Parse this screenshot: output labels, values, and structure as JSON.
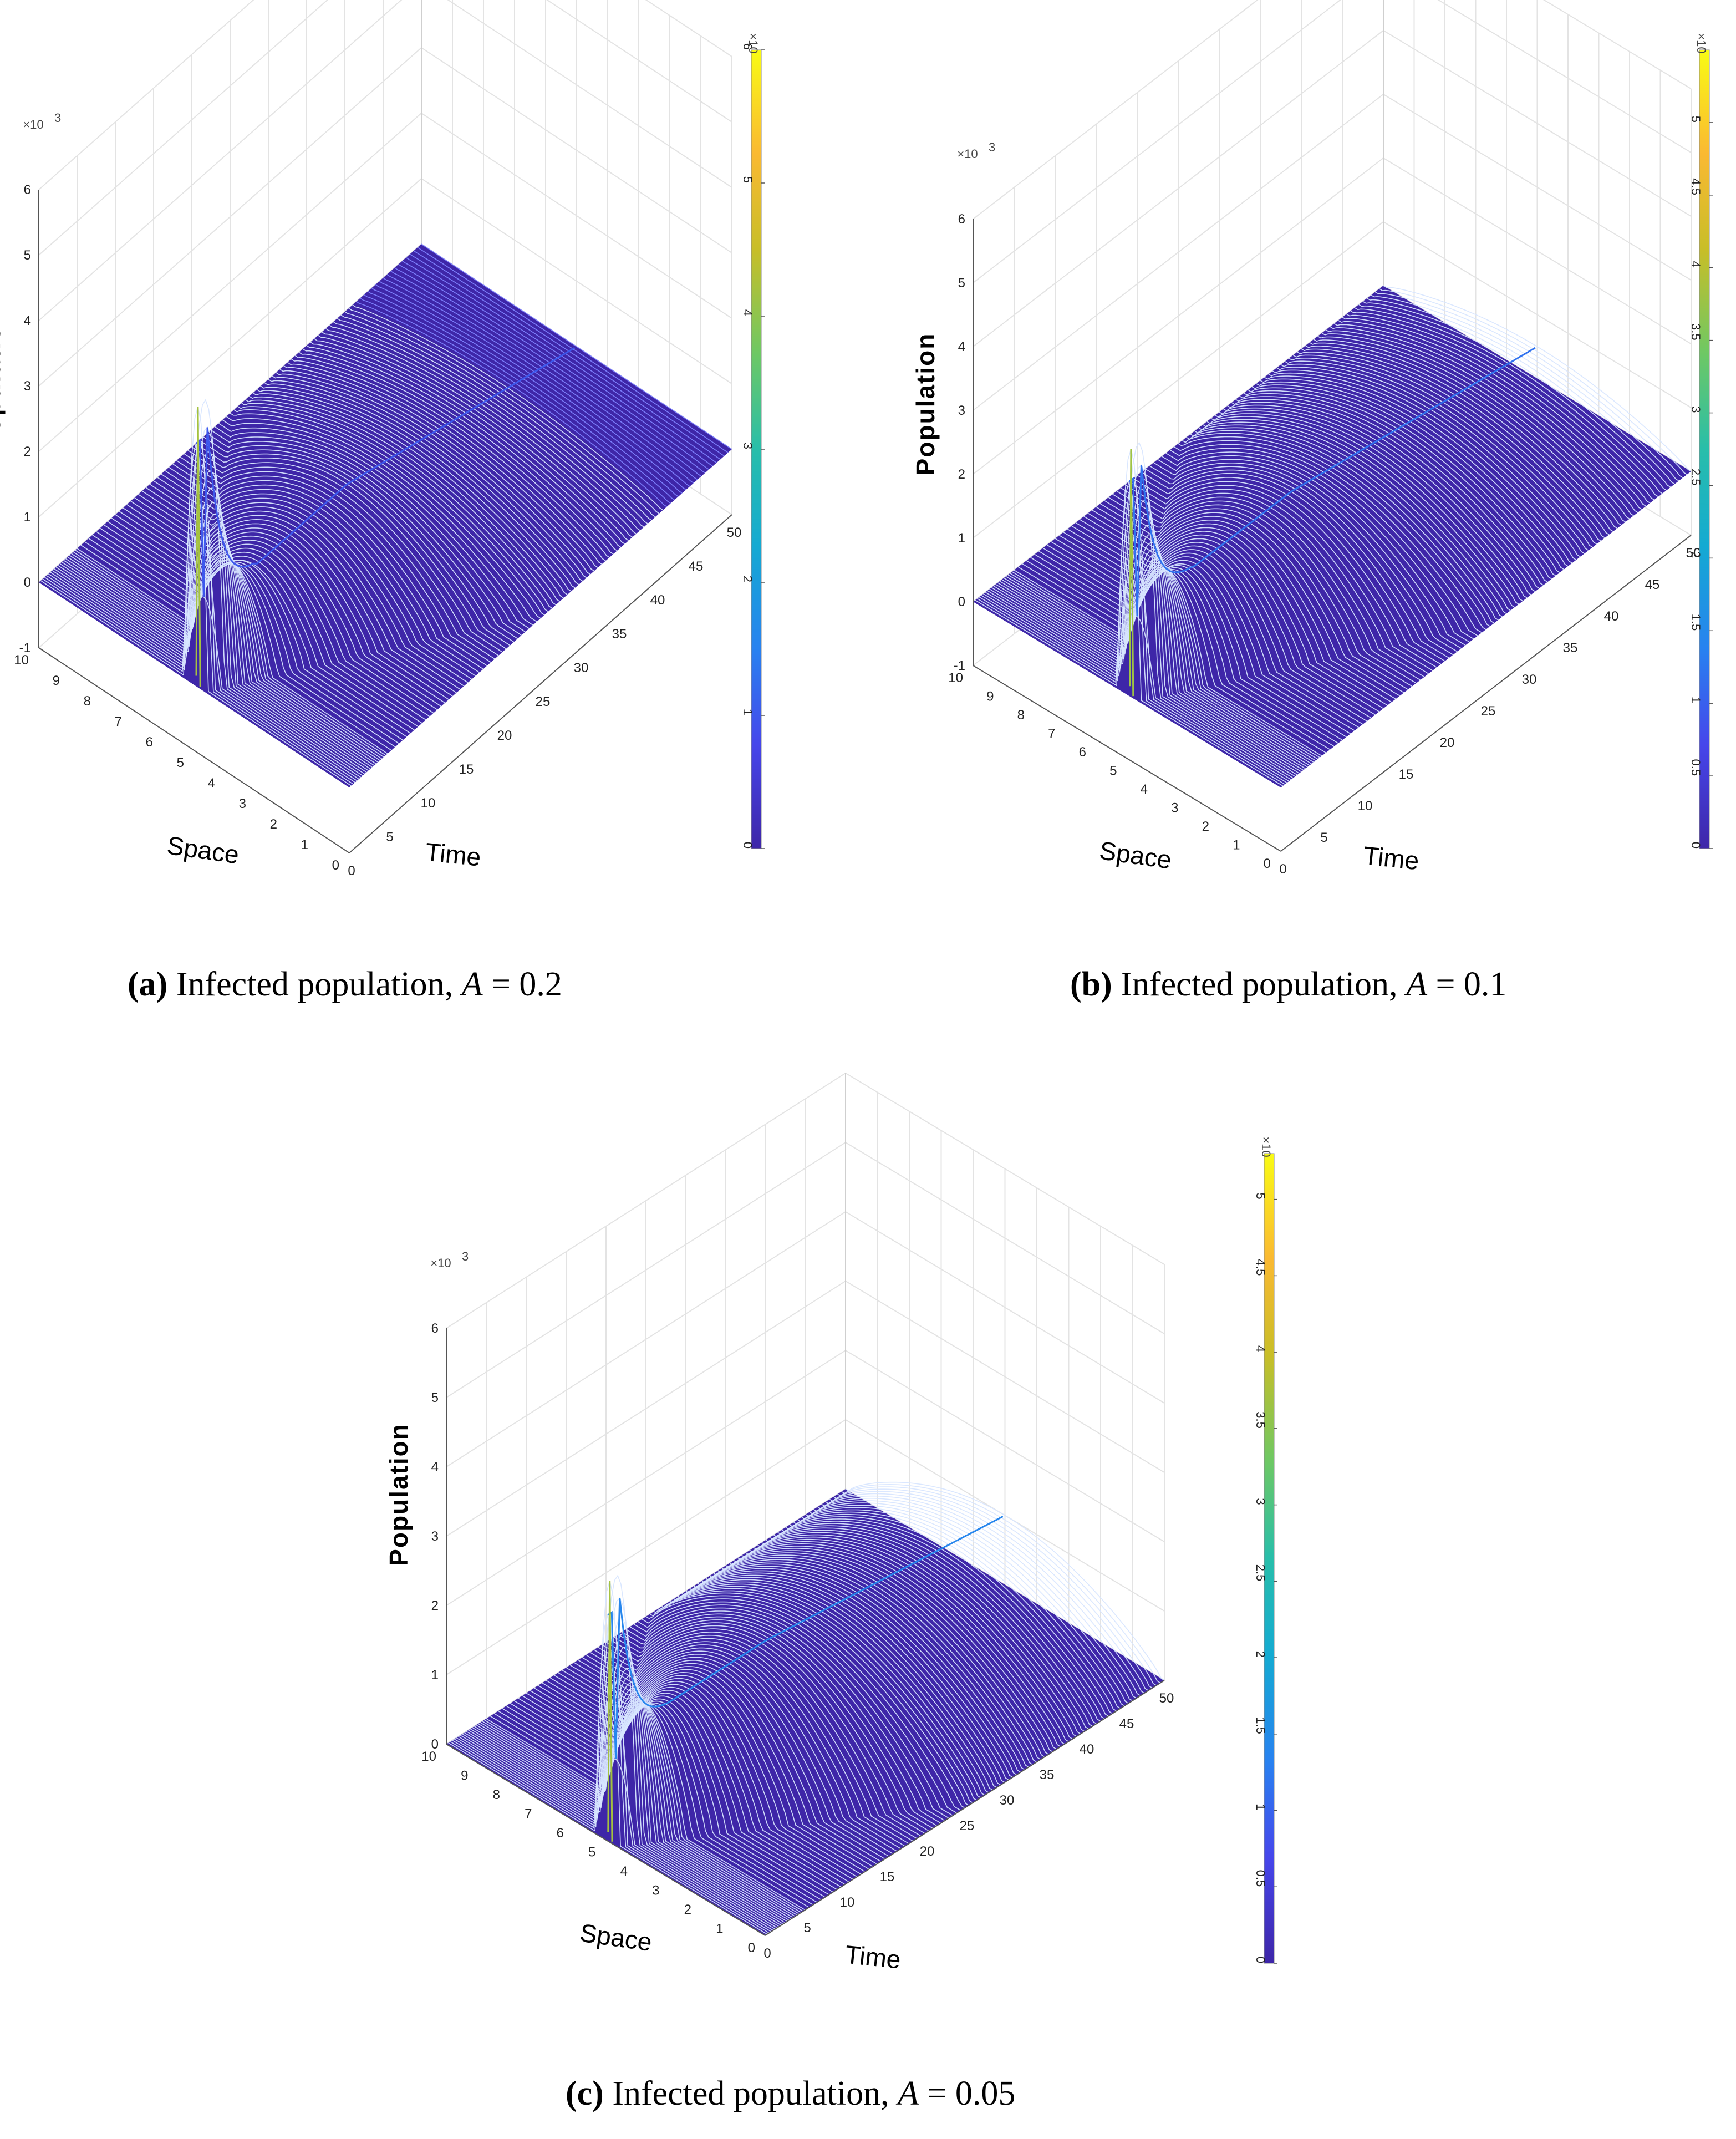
{
  "chart_data": [
    {
      "type": "surface3d",
      "panel": "a",
      "caption": {
        "letter": "(a)",
        "text": " Infected population, ",
        "param": "A",
        "value": " = 0.2"
      },
      "xlabel": "Space",
      "ylabel": "Time",
      "zlabel": "Population",
      "z_exponent": "×10",
      "exp_power": "3",
      "xlim": [
        0,
        10
      ],
      "ylim": [
        0,
        50
      ],
      "zlim": [
        -1,
        6
      ],
      "xticks": [
        "0",
        "1",
        "2",
        "3",
        "4",
        "5",
        "6",
        "7",
        "8",
        "9",
        "10"
      ],
      "yticks": [
        "0",
        "5",
        "10",
        "15",
        "20",
        "25",
        "30",
        "35",
        "40",
        "45",
        "50"
      ],
      "zticks": [
        "-1",
        "0",
        "1",
        "2",
        "3",
        "4",
        "5",
        "6"
      ],
      "colorbar": {
        "min": 0,
        "max": 6,
        "ticks": [
          "0",
          "1",
          "2",
          "3",
          "4",
          "5",
          "6"
        ],
        "exponent": "×10",
        "exp_power": "3"
      },
      "surface": {
        "peak_space": 5,
        "peak_time": 0.5,
        "peak_value": 4.2,
        "ridge_value": 1.0,
        "late_value": 0.0
      }
    },
    {
      "type": "surface3d",
      "panel": "b",
      "caption": {
        "letter": "(b)",
        "text": " Infected population, ",
        "param": "A",
        "value": " = 0.1"
      },
      "xlabel": "Space",
      "ylabel": "Time",
      "zlabel": "Population",
      "z_exponent": "×10",
      "exp_power": "3",
      "xlim": [
        0,
        10
      ],
      "ylim": [
        0,
        50
      ],
      "zlim": [
        -1,
        6
      ],
      "xticks": [
        "0",
        "1",
        "2",
        "3",
        "4",
        "5",
        "6",
        "7",
        "8",
        "9",
        "10"
      ],
      "yticks": [
        "0",
        "5",
        "10",
        "15",
        "20",
        "25",
        "30",
        "35",
        "40",
        "45",
        "50"
      ],
      "zticks": [
        "-1",
        "0",
        "1",
        "2",
        "3",
        "4",
        "5",
        "6"
      ],
      "colorbar": {
        "min": 0,
        "max": 5.5,
        "ticks": [
          "0",
          "0.5",
          "1",
          "1.5",
          "2",
          "2.5",
          "3",
          "3.5",
          "4",
          "4.5",
          "5"
        ],
        "exponent": "×10",
        "exp_power": "3"
      },
      "surface": {
        "peak_space": 5,
        "peak_time": 0.5,
        "peak_value": 3.8,
        "ridge_value": 1.2,
        "late_value": 0.5
      }
    },
    {
      "type": "surface3d",
      "panel": "c",
      "caption": {
        "letter": "(c)",
        "text": " Infected population, ",
        "param": "A",
        "value": " = 0.05"
      },
      "xlabel": "Space",
      "ylabel": "Time",
      "zlabel": "Population",
      "z_exponent": "×10",
      "exp_power": "3",
      "xlim": [
        0,
        10
      ],
      "ylim": [
        0,
        50
      ],
      "zlim": [
        0,
        6
      ],
      "xticks": [
        "0",
        "1",
        "2",
        "3",
        "4",
        "5",
        "6",
        "7",
        "8",
        "9",
        "10"
      ],
      "yticks": [
        "0",
        "5",
        "10",
        "15",
        "20",
        "25",
        "30",
        "35",
        "40",
        "45",
        "50"
      ],
      "zticks": [
        "0",
        "1",
        "2",
        "3",
        "4",
        "5",
        "6"
      ],
      "colorbar": {
        "min": 0,
        "max": 5.3,
        "ticks": [
          "0",
          "0.5",
          "1",
          "1.5",
          "2",
          "2.5",
          "3",
          "3.5",
          "4",
          "4.5",
          "5"
        ],
        "exponent": "×10",
        "exp_power": "3"
      },
      "surface": {
        "peak_space": 5,
        "peak_time": 0.5,
        "peak_value": 3.7,
        "ridge_value": 1.4,
        "late_value": 1.0
      }
    }
  ]
}
